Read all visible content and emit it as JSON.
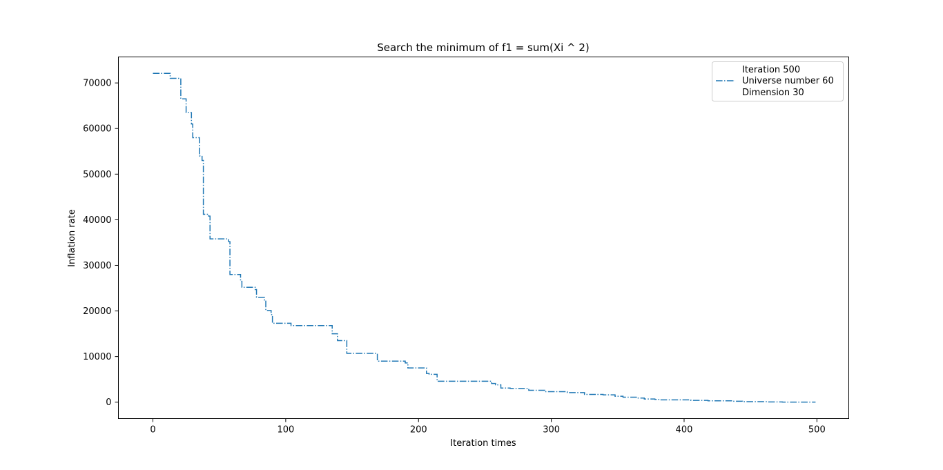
{
  "chart_data": {
    "type": "line",
    "title": "Search the minimum of f1 = sum(Xi ^ 2)",
    "xlabel": "Iteration times",
    "ylabel": "Inflation rate",
    "xlim": [
      -26,
      524
    ],
    "ylim": [
      -3600,
      75700
    ],
    "xticks": [
      0,
      100,
      200,
      300,
      400,
      500
    ],
    "xtick_labels": [
      "0",
      "100",
      "200",
      "300",
      "400",
      "500"
    ],
    "yticks": [
      0,
      10000,
      20000,
      30000,
      40000,
      50000,
      60000,
      70000
    ],
    "ytick_labels": [
      "0",
      "10000",
      "20000",
      "30000",
      "40000",
      "50000",
      "60000",
      "70000"
    ],
    "grid": false,
    "legend_position": "top-right",
    "legend": [
      "Iteration 500",
      "Universe number 60",
      "Dimension 30"
    ],
    "series": [
      {
        "name": "Universe number 60",
        "color": "#1f77b4",
        "linestyle": "dash-dot",
        "x": [
          0,
          13,
          13,
          17,
          17,
          21,
          21,
          25,
          25,
          29,
          29,
          30,
          30,
          35,
          35,
          37,
          37,
          38,
          38,
          42,
          42,
          43,
          43,
          57,
          57,
          58,
          58,
          66,
          66,
          67,
          67,
          77,
          77,
          78,
          78,
          84,
          84,
          85,
          85,
          89,
          89,
          90,
          90,
          104,
          104,
          135,
          135,
          136,
          136,
          139,
          139,
          141,
          141,
          146,
          146,
          148,
          148,
          169,
          169,
          170,
          170,
          190,
          190,
          192,
          192,
          194,
          194,
          206,
          206,
          208,
          208,
          214,
          214,
          216,
          216,
          255,
          255,
          258,
          258,
          262,
          262,
          269,
          269,
          271,
          271,
          283,
          283,
          290,
          290,
          295,
          295,
          312,
          312,
          325,
          325,
          339,
          339,
          348,
          348,
          354,
          354,
          364,
          364,
          370,
          370,
          378,
          378,
          382,
          382,
          405,
          405,
          418,
          418,
          437,
          437,
          444,
          444,
          463,
          463,
          474,
          474,
          499
        ],
        "y": [
          72100,
          72100,
          71000,
          71000,
          71000,
          71000,
          66500,
          66500,
          63500,
          63500,
          61000,
          61000,
          58000,
          58000,
          54000,
          54000,
          53000,
          53000,
          41200,
          41200,
          40800,
          40800,
          35800,
          35800,
          35200,
          35200,
          28000,
          28000,
          26500,
          26500,
          25200,
          25200,
          24700,
          24700,
          23000,
          23000,
          22400,
          22400,
          20100,
          20100,
          19200,
          19200,
          17300,
          17300,
          16800,
          16800,
          15000,
          15000,
          15000,
          15000,
          13500,
          13500,
          13500,
          13500,
          10700,
          10700,
          10700,
          10700,
          9300,
          9300,
          9000,
          9000,
          8600,
          8600,
          7500,
          7500,
          7500,
          7500,
          6300,
          6300,
          6100,
          6100,
          4600,
          4600,
          4600,
          4600,
          4100,
          4100,
          3800,
          3800,
          3100,
          3100,
          3000,
          3000,
          3000,
          3000,
          2600,
          2600,
          2600,
          2600,
          2300,
          2300,
          2100,
          2100,
          1700,
          1700,
          1600,
          1600,
          1300,
          1300,
          1100,
          1100,
          900,
          900,
          700,
          700,
          600,
          600,
          500,
          500,
          400,
          400,
          300,
          300,
          200,
          200,
          100,
          100,
          50,
          50,
          20,
          20
        ]
      }
    ]
  }
}
